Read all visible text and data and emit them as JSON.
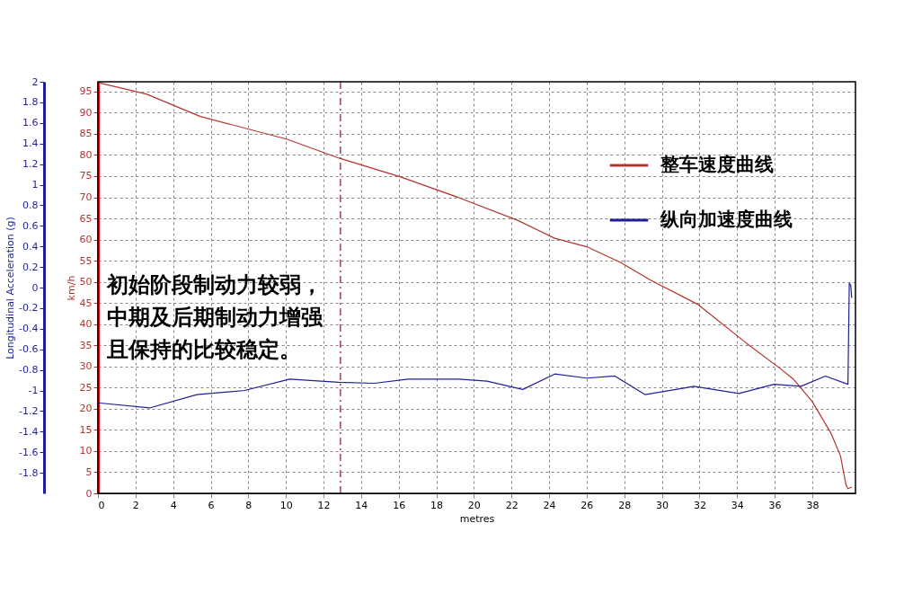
{
  "chart_data": {
    "type": "line",
    "xlabel": "metres",
    "ylabel": "km/h",
    "y2label": "Longitudinal Acceleration (g)",
    "xlim": [
      0,
      40.3
    ],
    "xticks": [
      0,
      2,
      4,
      6,
      8,
      10,
      12,
      14,
      16,
      18,
      20,
      22,
      24,
      26,
      28,
      30,
      32,
      34,
      36,
      38
    ],
    "ylim": [
      0,
      97.3
    ],
    "yticks": [
      0,
      5,
      10,
      15,
      20,
      25,
      30,
      35,
      40,
      45,
      50,
      55,
      60,
      65,
      70,
      75,
      80,
      85,
      90,
      95
    ],
    "y2lim": [
      -2,
      2
    ],
    "y2ticks": [
      -1.8,
      -1.6,
      -1.4,
      -1.2,
      -1,
      -0.8,
      -0.6,
      -0.4,
      -0.2,
      0,
      0.2,
      0.4,
      0.6,
      0.8,
      1,
      1.2,
      1.4,
      1.6,
      1.8,
      2
    ],
    "grid": true,
    "legend": "top right",
    "series": [
      {
        "name": "整车速度曲线",
        "color": "#b5332e",
        "x": [
          0,
          2.57,
          5.45,
          10.07,
          12.86,
          16.1,
          19.2,
          22.35,
          24.3,
          26.0,
          27.8,
          29.4,
          31.9,
          34.5,
          36.3,
          37,
          38,
          39,
          39.5,
          39.8,
          39.9,
          40.1
        ],
        "values": [
          97.1,
          94.4,
          89.1,
          83.7,
          79.2,
          74.8,
          69.9,
          64.5,
          60.3,
          58.3,
          54.6,
          50.4,
          44.7,
          35.5,
          29.5,
          27,
          21.7,
          14.2,
          8.9,
          1.9,
          1.1,
          1.5
        ]
      },
      {
        "name": "纵向加速度曲线",
        "color": "#1f1f99",
        "axis": "y2",
        "x": [
          0,
          2.74,
          5.26,
          7.8,
          10.2,
          12.8,
          14.7,
          16.5,
          19.2,
          20.7,
          22.6,
          24.3,
          26.0,
          27.5,
          29.1,
          31.7,
          34.1,
          35.96,
          37.4,
          38.7,
          39.9,
          39.97,
          40.05,
          40.1
        ],
        "values": [
          -1.12,
          -1.17,
          -1.04,
          -1.0,
          -0.89,
          -0.92,
          -0.93,
          -0.89,
          -0.89,
          -0.91,
          -0.99,
          -0.84,
          -0.88,
          -0.86,
          -1.04,
          -0.96,
          -1.03,
          -0.94,
          -0.96,
          -0.86,
          -0.94,
          0.04,
          0.02,
          -0.1
        ]
      }
    ],
    "ref_lines": [
      {
        "axis": "x",
        "value": 12.9,
        "color": "#8b2a3a",
        "line_style": "dashdot"
      }
    ],
    "annotations": [
      "初始阶段制动力较弱，",
      "中期及后期制动力增强",
      "且保持的比较稳定。"
    ]
  }
}
